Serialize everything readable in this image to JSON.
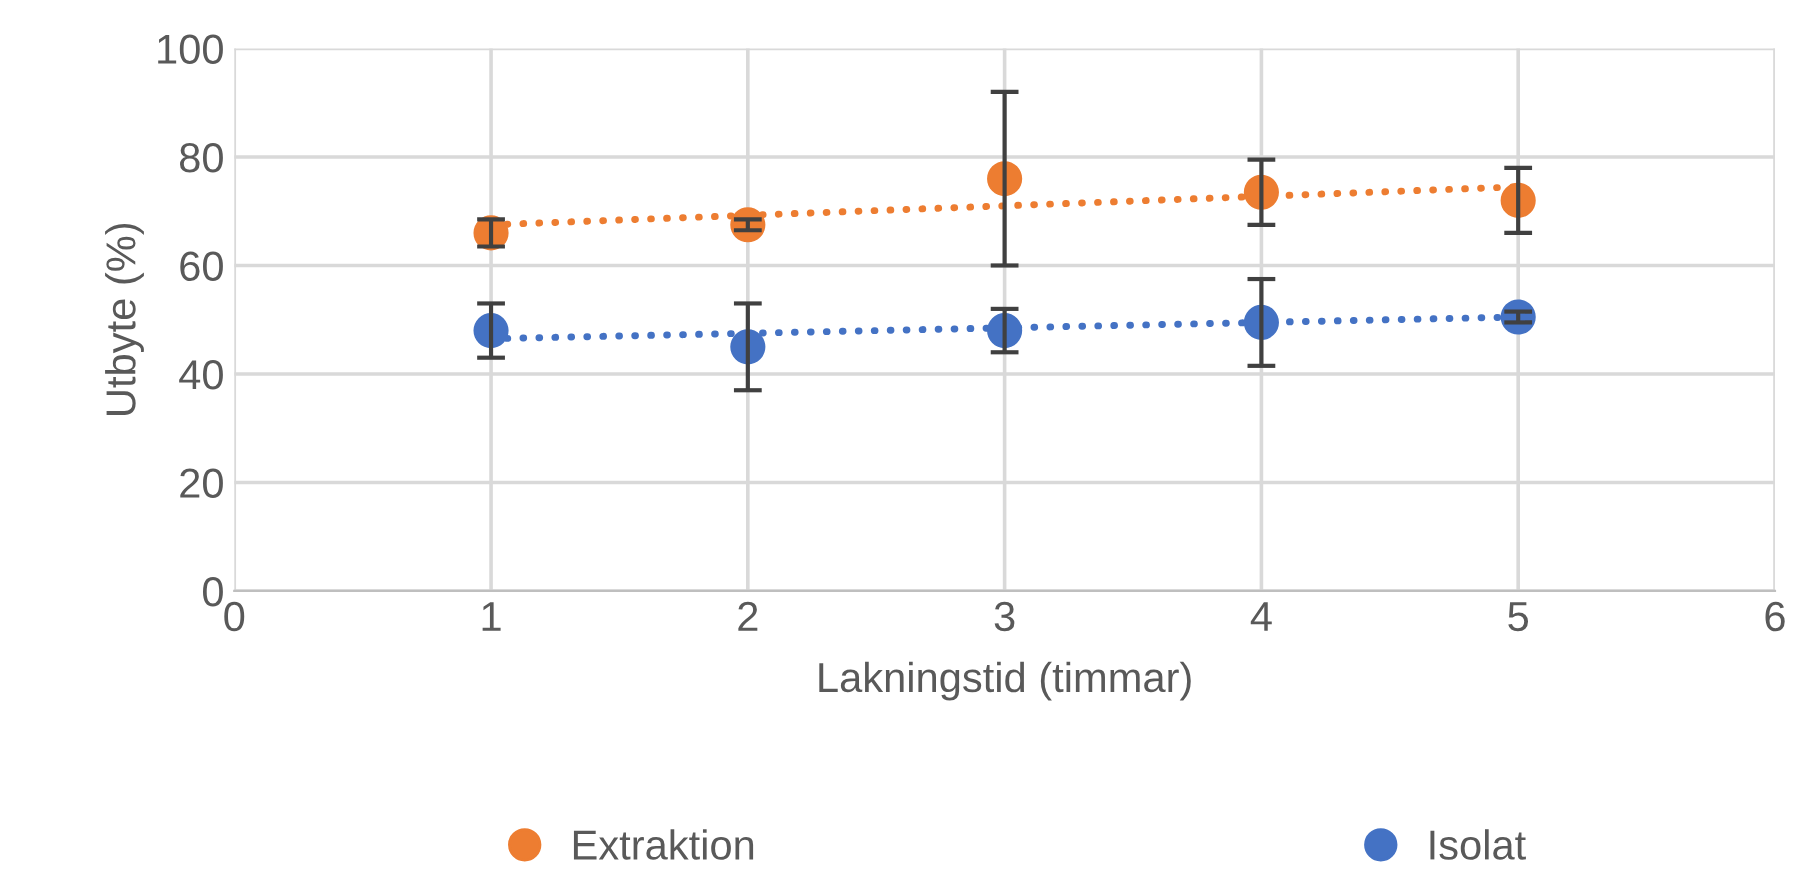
{
  "chart_data": {
    "type": "scatter",
    "xlabel": "Lakningstid (timmar)",
    "ylabel": "Utbyte (%)",
    "xlim": [
      0,
      6
    ],
    "xticks": [
      0,
      1,
      2,
      3,
      4,
      5,
      6
    ],
    "ylim": [
      0,
      100
    ],
    "yticks": [
      0,
      20,
      40,
      60,
      80,
      100
    ],
    "grid": true,
    "legend": "bottom",
    "marker": "circle",
    "series": [
      {
        "name": "Extraktion",
        "color": "#ed7d31",
        "x": [
          1,
          2,
          3,
          4,
          5
        ],
        "values": [
          66,
          67.5,
          76,
          73.5,
          72
        ],
        "errors": [
          2.5,
          1,
          16,
          6,
          6
        ]
      },
      {
        "name": "Isolat",
        "color": "#4472c4",
        "x": [
          1,
          2,
          3,
          4,
          5
        ],
        "values": [
          48,
          45,
          48,
          49.5,
          50.5
        ],
        "errors": [
          5,
          8,
          4,
          8,
          1
        ]
      },
      {
        "type": "line",
        "color": "#ed7d31",
        "x": [
          1,
          5
        ],
        "values": [
          67.5,
          74.5
        ],
        "line_style": "dotted",
        "marker": "none"
      },
      {
        "type": "line",
        "color": "#4472c4",
        "x": [
          1,
          5
        ],
        "values": [
          46.5,
          50.5
        ],
        "line_style": "dotted",
        "marker": "none"
      }
    ]
  }
}
